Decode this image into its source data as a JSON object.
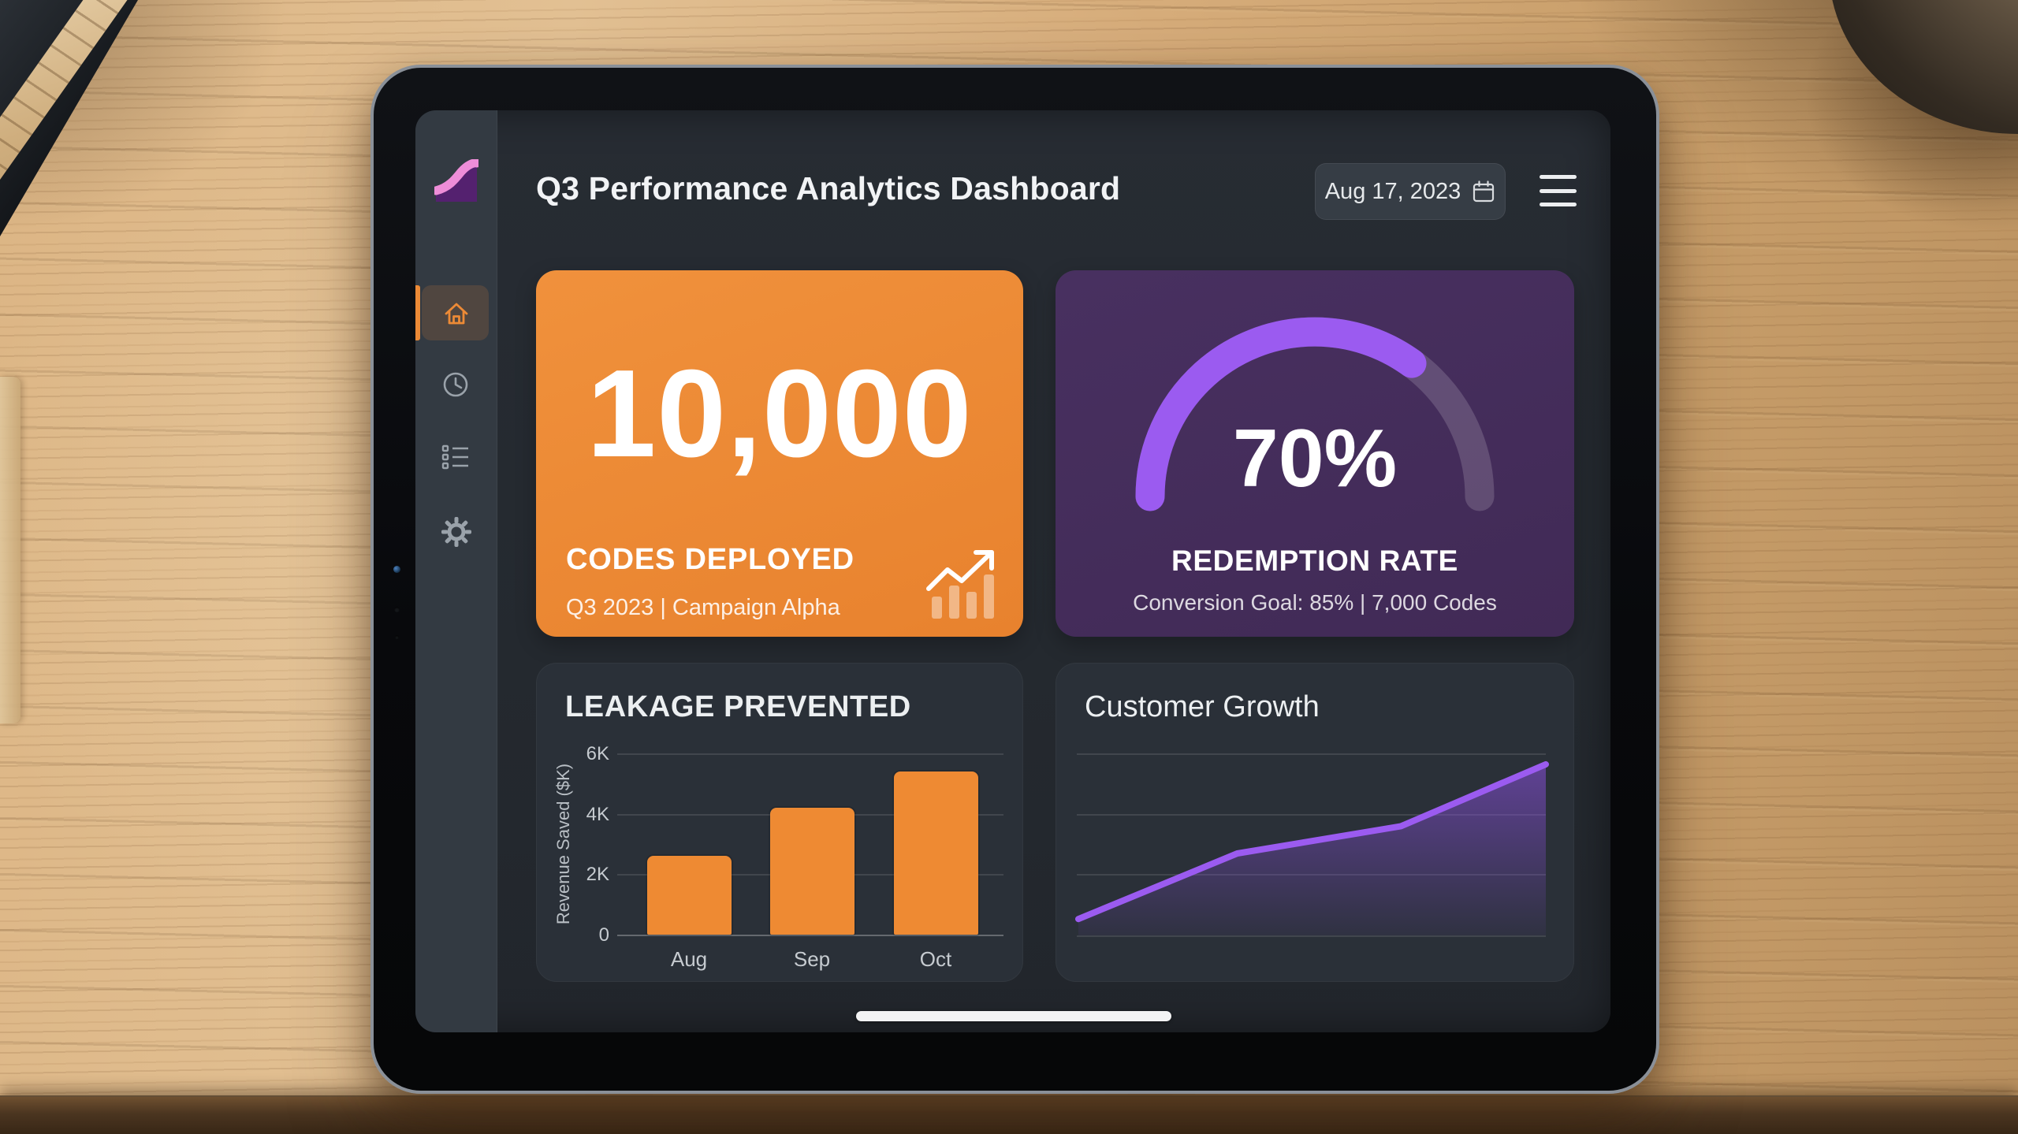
{
  "header": {
    "title": "Q3 Performance Analytics Dashboard",
    "date": "Aug 17, 2023"
  },
  "sidebar": {
    "items": [
      {
        "id": "home",
        "icon": "home-icon",
        "active": true
      },
      {
        "id": "history",
        "icon": "clock-icon",
        "active": false
      },
      {
        "id": "reports",
        "icon": "list-icon",
        "active": false
      },
      {
        "id": "settings",
        "icon": "gear-icon",
        "active": false
      }
    ],
    "logo_icon": "wave-chart-logo"
  },
  "cards": {
    "codes_deployed": {
      "value": "10,000",
      "label": "CODES DEPLOYED",
      "sublabel": "Q3 2023 | Campaign Alpha",
      "icon": "trend-up-icon"
    },
    "redemption_rate": {
      "value": "70%",
      "percent": 70,
      "label": "REDEMPTION RATE",
      "sublabel": "Conversion Goal: 85% | 7,000 Codes"
    }
  },
  "chart_data": [
    {
      "type": "bar",
      "title": "LEAKAGE PREVENTED",
      "categories": [
        "Aug",
        "Sep",
        "Oct"
      ],
      "values": [
        2.6,
        4.2,
        5.4
      ],
      "ylabel": "Revenue Saved ($K)",
      "yticks": [
        "6K",
        "4K",
        "2K",
        "0"
      ],
      "ylim": [
        0,
        6
      ],
      "grid": true,
      "bar_color": "#EE8A33"
    },
    {
      "type": "area",
      "title": "Customer Growth",
      "points_norm": [
        [
          0,
          0.09
        ],
        [
          0.34,
          0.45
        ],
        [
          0.69,
          0.6
        ],
        [
          1,
          0.94
        ]
      ],
      "ylim_norm": [
        0,
        1
      ],
      "grid": true,
      "line_color": "#9B5BF0"
    }
  ],
  "home_indicator": true,
  "colors": {
    "accent_orange": "#EC8A36",
    "accent_purple": "#9B5BF0",
    "purple_card_bg": "#442D5A",
    "screen_bg": "#262B31",
    "sidebar_bg": "#333A42",
    "dark_card_bg": "#2A3038"
  }
}
